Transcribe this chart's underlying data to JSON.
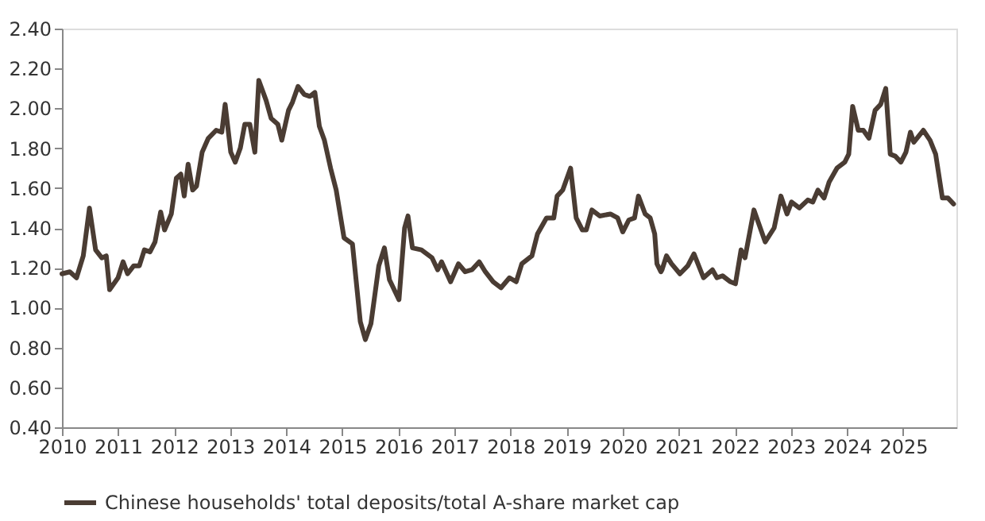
{
  "chart_data": {
    "type": "line",
    "x": [
      2010.0,
      2010.14,
      2010.26,
      2010.38,
      2010.49,
      2010.6,
      2010.71,
      2010.79,
      2010.85,
      2011.0,
      2011.09,
      2011.17,
      2011.28,
      2011.38,
      2011.47,
      2011.57,
      2011.66,
      2011.76,
      2011.83,
      2011.95,
      2012.04,
      2012.12,
      2012.18,
      2012.25,
      2012.33,
      2012.4,
      2012.5,
      2012.61,
      2012.75,
      2012.85,
      2012.91,
      2013.01,
      2013.09,
      2013.18,
      2013.26,
      2013.35,
      2013.44,
      2013.51,
      2013.64,
      2013.73,
      2013.85,
      2013.92,
      2014.04,
      2014.11,
      2014.21,
      2014.32,
      2014.42,
      2014.51,
      2014.59,
      2014.68,
      2014.79,
      2014.89,
      2015.03,
      2015.18,
      2015.32,
      2015.41,
      2015.51,
      2015.65,
      2015.75,
      2015.84,
      2016.01,
      2016.11,
      2016.17,
      2016.25,
      2016.41,
      2016.6,
      2016.7,
      2016.77,
      2016.93,
      2017.07,
      2017.19,
      2017.31,
      2017.44,
      2017.55,
      2017.69,
      2017.83,
      2017.98,
      2018.1,
      2018.2,
      2018.38,
      2018.48,
      2018.64,
      2018.77,
      2018.83,
      2018.93,
      2019.07,
      2019.17,
      2019.28,
      2019.35,
      2019.45,
      2019.59,
      2019.78,
      2019.91,
      2020.0,
      2020.11,
      2020.21,
      2020.28,
      2020.4,
      2020.49,
      2020.57,
      2020.61,
      2020.68,
      2020.7,
      2020.78,
      2020.87,
      2021.02,
      2021.16,
      2021.27,
      2021.44,
      2021.6,
      2021.68,
      2021.78,
      2021.92,
      2022.01,
      2022.11,
      2022.18,
      2022.34,
      2022.54,
      2022.7,
      2022.82,
      2022.93,
      2023.01,
      2023.15,
      2023.3,
      2023.39,
      2023.48,
      2023.59,
      2023.68,
      2023.82,
      2023.96,
      2024.03,
      2024.1,
      2024.2,
      2024.29,
      2024.39,
      2024.5,
      2024.6,
      2024.69,
      2024.77,
      2024.86,
      2024.96,
      2025.05,
      2025.13,
      2025.19,
      2025.36,
      2025.48,
      2025.58,
      2025.7,
      2025.8,
      2025.9
    ],
    "series": [
      {
        "name": "Chinese households' total deposits/total A-share market cap",
        "color": "#4a3c33",
        "values": [
          1.17,
          1.18,
          1.15,
          1.26,
          1.5,
          1.29,
          1.25,
          1.26,
          1.09,
          1.15,
          1.23,
          1.17,
          1.21,
          1.21,
          1.29,
          1.28,
          1.33,
          1.48,
          1.39,
          1.47,
          1.65,
          1.67,
          1.56,
          1.72,
          1.59,
          1.61,
          1.78,
          1.85,
          1.89,
          1.88,
          2.02,
          1.78,
          1.73,
          1.8,
          1.92,
          1.92,
          1.78,
          2.14,
          2.04,
          1.95,
          1.92,
          1.84,
          1.99,
          2.03,
          2.11,
          2.07,
          2.06,
          2.08,
          1.91,
          1.84,
          1.7,
          1.59,
          1.35,
          1.32,
          0.93,
          0.84,
          0.92,
          1.21,
          1.3,
          1.14,
          1.04,
          1.4,
          1.46,
          1.3,
          1.29,
          1.25,
          1.19,
          1.23,
          1.13,
          1.22,
          1.18,
          1.19,
          1.23,
          1.18,
          1.13,
          1.1,
          1.15,
          1.13,
          1.22,
          1.26,
          1.37,
          1.45,
          1.45,
          1.56,
          1.59,
          1.7,
          1.45,
          1.39,
          1.39,
          1.49,
          1.46,
          1.47,
          1.45,
          1.38,
          1.44,
          1.45,
          1.56,
          1.47,
          1.45,
          1.37,
          1.22,
          1.18,
          1.19,
          1.26,
          1.22,
          1.17,
          1.21,
          1.27,
          1.15,
          1.19,
          1.15,
          1.16,
          1.13,
          1.12,
          1.29,
          1.25,
          1.49,
          1.33,
          1.4,
          1.56,
          1.47,
          1.53,
          1.5,
          1.54,
          1.53,
          1.59,
          1.55,
          1.63,
          1.7,
          1.73,
          1.77,
          2.01,
          1.89,
          1.89,
          1.85,
          1.99,
          2.02,
          2.1,
          1.77,
          1.76,
          1.73,
          1.78,
          1.88,
          1.83,
          1.89,
          1.84,
          1.77,
          1.55,
          1.55,
          1.52
        ]
      }
    ],
    "xlim": [
      2010,
      2025.95
    ],
    "xticks": [
      2010,
      2011,
      2012,
      2013,
      2014,
      2015,
      2016,
      2017,
      2018,
      2019,
      2020,
      2021,
      2022,
      2023,
      2024,
      2025
    ],
    "ylim": [
      0.4,
      2.4
    ],
    "yticks": [
      {
        "value": 0.4,
        "label": "0.40"
      },
      {
        "value": 0.6,
        "label": "0.60"
      },
      {
        "value": 0.8,
        "label": "0.80"
      },
      {
        "value": 1.0,
        "label": "1.00"
      },
      {
        "value": 1.2,
        "label": "1.20"
      },
      {
        "value": 1.4,
        "label": "1.40"
      },
      {
        "value": 1.6,
        "label": "1.60"
      },
      {
        "value": 1.8,
        "label": "1.80"
      },
      {
        "value": 2.0,
        "label": "2.00"
      },
      {
        "value": 2.2,
        "label": "2.20"
      },
      {
        "value": 2.4,
        "label": "2.40"
      }
    ],
    "grid": false,
    "legend": "bottom"
  }
}
